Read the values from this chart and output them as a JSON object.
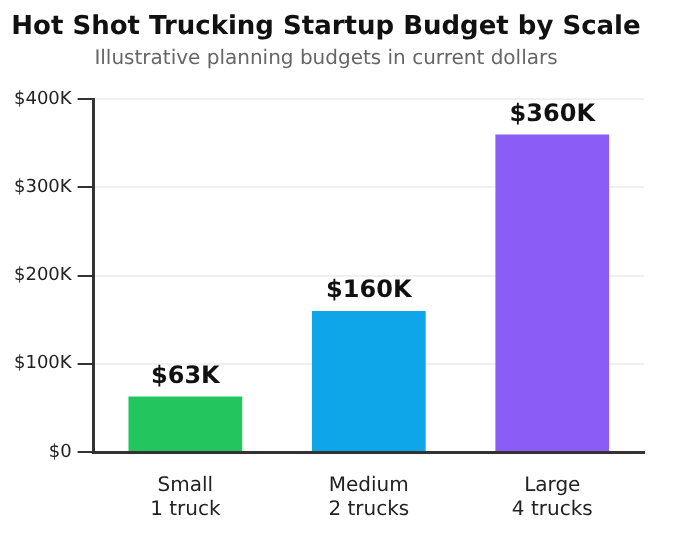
{
  "chart_data": {
    "type": "bar",
    "title": "Hot Shot Trucking Startup Budget by Scale",
    "subtitle": "Illustrative planning budgets in current dollars",
    "categories": [
      "Small\n1 truck",
      "Medium\n2 trucks",
      "Large\n4 trucks"
    ],
    "values": [
      63000,
      160000,
      360000
    ],
    "colors": [
      "#22c55e",
      "#0ea5e9",
      "#8b5cf6"
    ],
    "value_labels": [
      "$63K",
      "$160K",
      "$360K"
    ],
    "ylim": [
      0,
      400000
    ],
    "yticks": [
      {
        "value": 0,
        "label": "$0"
      },
      {
        "value": 100000,
        "label": "$100K"
      },
      {
        "value": 200000,
        "label": "$200K"
      },
      {
        "value": 300000,
        "label": "$300K"
      },
      {
        "value": 400000,
        "label": "$400K"
      }
    ],
    "grid": "y"
  }
}
